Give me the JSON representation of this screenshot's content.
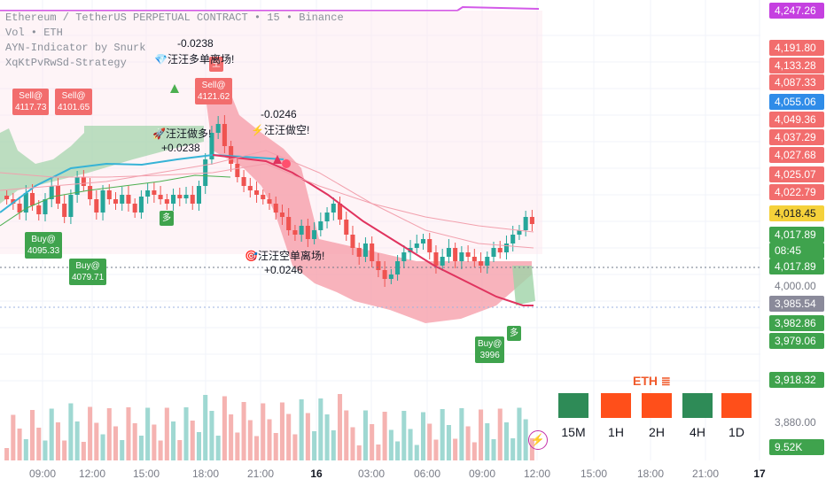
{
  "legend": {
    "line1": "Ethereum / TetherUS PERPETUAL CONTRACT • 15 • Binance",
    "line2": "Vol • ETH",
    "line3": "AYN-Indicator by Snurk",
    "line4": "XqKtPvRwSd-Strategy"
  },
  "price_axis": {
    "tags": [
      {
        "label": "4,247.26",
        "color": "#c540e0"
      },
      {
        "label": "4,191.80",
        "color": "#f26d6d"
      },
      {
        "label": "4,133.28",
        "color": "#f26d6d"
      },
      {
        "label": "4,087.33",
        "color": "#f26d6d"
      },
      {
        "label": "4,055.06",
        "color": "#2f8ce8"
      },
      {
        "label": "4,049.36",
        "color": "#f26d6d"
      },
      {
        "label": "4,037.29",
        "color": "#f26d6d"
      },
      {
        "label": "4,027.68",
        "color": "#f26d6d"
      },
      {
        "label": "4,025.07",
        "color": "#f26d6d"
      },
      {
        "label": "4,022.79",
        "color": "#f26d6d"
      },
      {
        "label": "4,018.45",
        "color": "#f5d13a"
      },
      {
        "label": "4,017.89",
        "color": "#3fa34d"
      },
      {
        "label": "08:45",
        "color": "#3fa34d"
      },
      {
        "label": "4,017.89",
        "color": "#3fa34d"
      },
      {
        "label": "3,985.54",
        "color": "#8a8a9a"
      },
      {
        "label": "3,982.86",
        "color": "#3fa34d"
      },
      {
        "label": "3,979.06",
        "color": "#3fa34d"
      },
      {
        "label": "3,918.32",
        "color": "#3fa34d"
      },
      {
        "label": "9.52K",
        "color": "#3fa34d"
      }
    ],
    "plain": [
      "4,000.00",
      "3,880.00"
    ]
  },
  "time_axis": [
    "09:00",
    "12:00",
    "15:00",
    "18:00",
    "21:00",
    "16",
    "03:00",
    "06:00",
    "09:00",
    "12:00",
    "15:00",
    "18:00",
    "21:00",
    "17"
  ],
  "signals": {
    "sell_badges": [
      "Sell@\n4117.73",
      "Sell@\n4101.65",
      "Sell@\n4121.62"
    ],
    "buy_badges": [
      "Buy@\n4095.33",
      "Buy@\n4079.71",
      "Buy@\n3996"
    ],
    "duo_badges": [
      "多",
      "多"
    ],
    "kong_badge": "空",
    "notes": [
      {
        "text": "-0.0238"
      },
      {
        "text": "💎汪汪多单离场!"
      },
      {
        "text": "🚀汪汪做多!"
      },
      {
        "text": "+0.0238"
      },
      {
        "text": "-0.0246"
      },
      {
        "text": "⚡汪汪做空!"
      },
      {
        "text": "🎯汪汪空单离场!"
      },
      {
        "text": "+0.0246"
      }
    ]
  },
  "timeframe_panel": {
    "symbol": "ETH",
    "frames": [
      {
        "label": "15M",
        "color": "#2e8b57"
      },
      {
        "label": "1H",
        "color": "#ff4f1a"
      },
      {
        "label": "2H",
        "color": "#ff4f1a"
      },
      {
        "label": "4H",
        "color": "#2e8b57"
      },
      {
        "label": "1D",
        "color": "#ff4f1a"
      }
    ]
  },
  "chart_data": {
    "type": "candlestick",
    "symbol": "ETHUSDT.P",
    "interval": "15",
    "ylim": [
      3860,
      4260
    ],
    "close_series": [
      4045,
      4040,
      4030,
      4052,
      4038,
      4028,
      4045,
      4060,
      4040,
      4025,
      4050,
      4070,
      4060,
      4045,
      4030,
      4055,
      4045,
      4040,
      4050,
      4040,
      4030,
      4048,
      4055,
      4050,
      4045,
      4040,
      4050,
      4046,
      4050,
      4040,
      4060,
      4090,
      4120,
      4130,
      4105,
      4085,
      4070,
      4060,
      4055,
      4050,
      4045,
      4040,
      4030,
      4025,
      4010,
      4005,
      4015,
      4000,
      4010,
      4020,
      4030,
      4040,
      4022,
      4005,
      3990,
      3980,
      3995,
      3975,
      3965,
      3955,
      3960,
      3975,
      3985,
      3990,
      3995,
      4000,
      3985,
      3970,
      3980,
      3990,
      3975,
      3985,
      3980,
      3975,
      3970,
      3980,
      3990,
      3985,
      3995,
      4005,
      4010,
      4025,
      4017
    ]
  }
}
